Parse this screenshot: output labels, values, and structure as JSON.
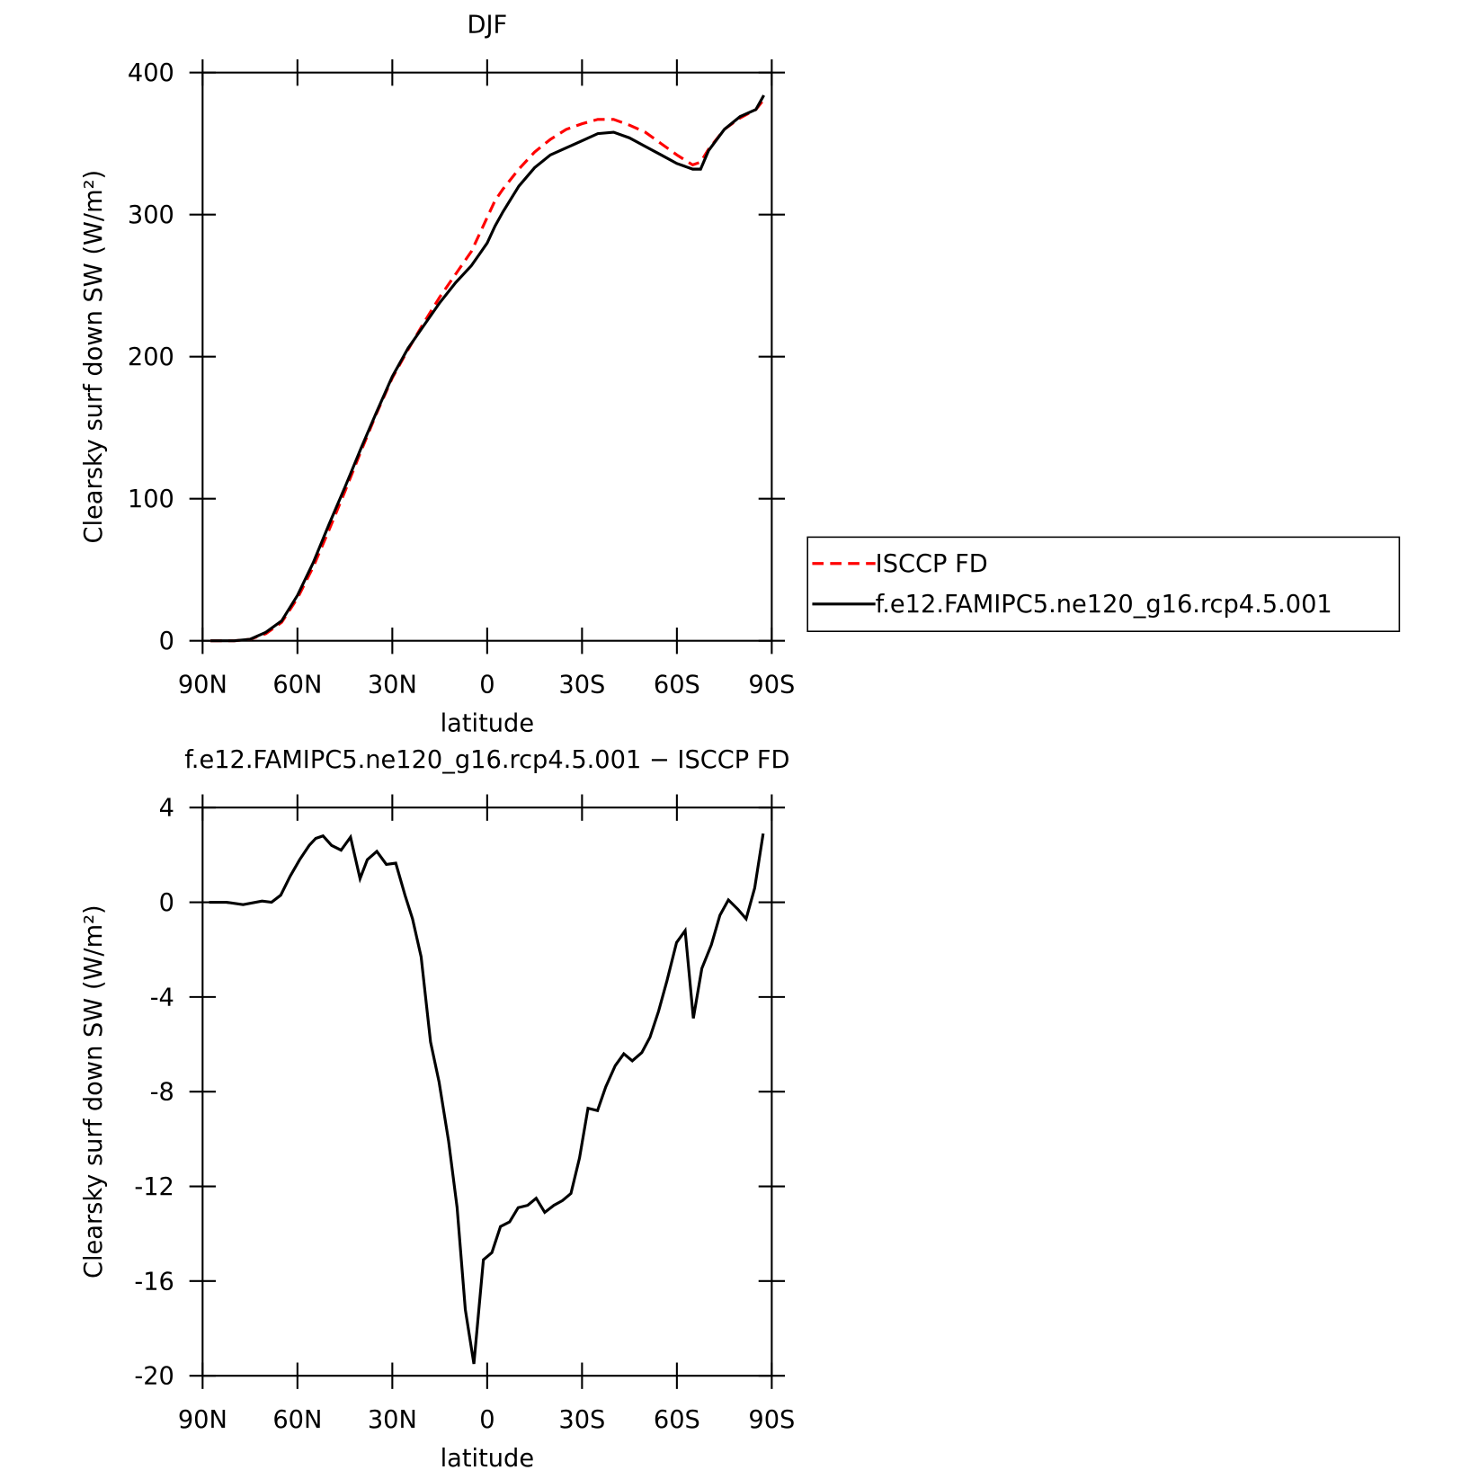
{
  "chart_data": [
    {
      "type": "line",
      "title": "DJF",
      "ylabel": "Clearsky surf down SW (W/m²)",
      "xlabel": "latitude",
      "x": [
        87.5,
        80,
        75,
        70,
        65,
        60,
        55,
        50,
        45,
        40,
        35,
        30,
        25,
        20,
        15,
        10,
        5,
        2.5,
        0,
        -2.5,
        -5,
        -10,
        -15,
        -20,
        -25,
        -30,
        -35,
        -40,
        -45,
        -50,
        -55,
        -60,
        -65,
        -67.5,
        -70,
        -75,
        -80,
        -85,
        -87.5
      ],
      "series": [
        {
          "name": "ISCCP FD",
          "color": "#ff0000",
          "line_style": "dashed",
          "values": [
            0,
            0,
            1,
            5,
            13,
            30,
            52,
            78,
            105,
            133,
            160,
            185,
            205,
            224,
            242,
            258,
            274,
            286,
            298,
            310,
            318,
            332,
            344,
            353,
            360,
            364,
            367,
            367,
            363,
            358,
            350,
            342,
            335,
            337,
            346,
            360,
            368,
            374,
            381
          ]
        },
        {
          "name": "f.e12.FAMIPC5.ne120_g16.rcp4.5.001",
          "color": "#000000",
          "line_style": "solid",
          "values": [
            0,
            0,
            1,
            6,
            14,
            32,
            55,
            82,
            108,
            135,
            161,
            186,
            206,
            222,
            238,
            252,
            264,
            272,
            280,
            292,
            302,
            320,
            333,
            342,
            347,
            352,
            357,
            358,
            354,
            348,
            342,
            336,
            332,
            332,
            345,
            360,
            369,
            374,
            384
          ]
        }
      ],
      "xlim": [
        90,
        -90
      ],
      "xticks": [
        {
          "value": 90,
          "label": "90N"
        },
        {
          "value": 60,
          "label": "60N"
        },
        {
          "value": 30,
          "label": "30N"
        },
        0,
        {
          "value": -30,
          "label": "30S"
        },
        {
          "value": -60,
          "label": "60S"
        },
        {
          "value": -90,
          "label": "90S"
        }
      ],
      "ylim": [
        0,
        400
      ],
      "yticks": [
        0,
        100,
        200,
        300,
        400
      ],
      "legend": "right"
    },
    {
      "type": "line",
      "title": "f.e12.FAMIPC5.ne120_g16.rcp4.5.001 − ISCCP FD",
      "ylabel": "Clearsky surf down SW (W/m²)",
      "xlabel": "latitude",
      "x": [
        87.9,
        82.5,
        77.2,
        71.2,
        68.2,
        65.3,
        62.3,
        59.3,
        56.3,
        54.2,
        51.9,
        49.2,
        46.2,
        43.2,
        40.2,
        37.9,
        34.9,
        31.9,
        28.9,
        26,
        23.6,
        20.9,
        17.9,
        15.2,
        12.2,
        9.5,
        6.9,
        4.2,
        1.2,
        -1.5,
        -4.2,
        -7.1,
        -9.8,
        -12.8,
        -15.5,
        -18.2,
        -21.1,
        -23.8,
        -26.5,
        -29.2,
        -31.9,
        -34.9,
        -37.5,
        -40.5,
        -43.2,
        -45.9,
        -48.9,
        -51.5,
        -54.2,
        -56.9,
        -59.9,
        -62.6,
        -65.2,
        -67.9,
        -70.9,
        -73.6,
        -76.3,
        -79.3,
        -81.9,
        -84.6,
        -87.3
      ],
      "color": "#000000",
      "values": [
        0,
        0,
        -0.1,
        0.05,
        0,
        0.3,
        1.1,
        1.8,
        2.4,
        2.7,
        2.8,
        2.4,
        2.2,
        2.75,
        1.0,
        1.8,
        2.15,
        1.6,
        1.65,
        0.3,
        -0.7,
        -2.3,
        -5.9,
        -7.6,
        -10.1,
        -12.9,
        -17.2,
        -19.5,
        -15.1,
        -14.8,
        -13.7,
        -13.5,
        -12.9,
        -12.8,
        -12.5,
        -13.1,
        -12.8,
        -12.6,
        -12.3,
        -10.8,
        -8.7,
        -8.8,
        -7.8,
        -6.9,
        -6.4,
        -6.7,
        -6.35,
        -5.7,
        -4.6,
        -3.3,
        -1.7,
        -1.2,
        -4.9,
        -2.8,
        -1.8,
        -0.55,
        0.1,
        -0.3,
        -0.7,
        0.6,
        2.9
      ],
      "xlim": [
        90,
        -90
      ],
      "xticks": [
        {
          "value": 90,
          "label": "90N"
        },
        {
          "value": 60,
          "label": "60N"
        },
        {
          "value": 30,
          "label": "30N"
        },
        0,
        {
          "value": -30,
          "label": "30S"
        },
        {
          "value": -60,
          "label": "60S"
        },
        {
          "value": -90,
          "label": "90S"
        }
      ],
      "ylim": [
        -20,
        4
      ],
      "yticks": [
        -20,
        -16,
        -12,
        -8,
        -4,
        0,
        4
      ]
    }
  ]
}
